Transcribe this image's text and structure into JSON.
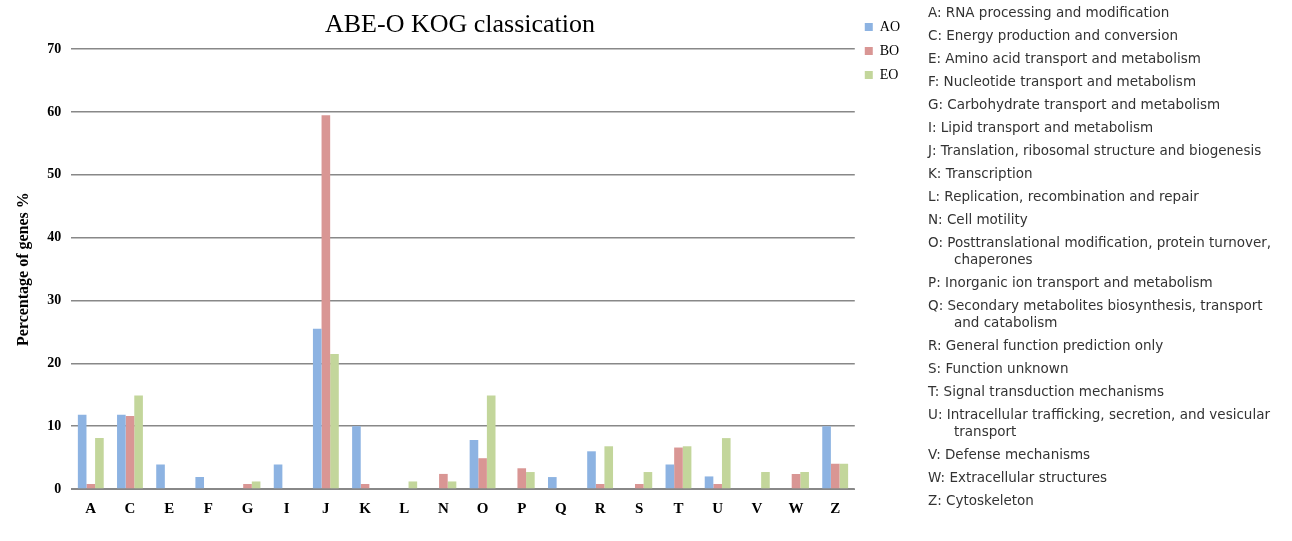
{
  "chart_data": {
    "type": "bar",
    "title": "ABE-O KOG classication",
    "ylabel": "Percentage of genes %",
    "categories": [
      "A",
      "C",
      "E",
      "F",
      "G",
      "I",
      "J",
      "K",
      "L",
      "N",
      "O",
      "P",
      "Q",
      "R",
      "S",
      "T",
      "U",
      "V",
      "W",
      "Z"
    ],
    "series": [
      {
        "name": "AO",
        "color": "#8db3e2",
        "values": [
          11.8,
          11.8,
          3.9,
          1.9,
          0,
          3.9,
          25.5,
          10,
          0,
          0,
          7.8,
          0,
          1.9,
          6,
          0,
          3.9,
          2,
          0,
          0,
          10
        ]
      },
      {
        "name": "BO",
        "color": "#d99694",
        "values": [
          0.8,
          11.6,
          0,
          0,
          0.8,
          0,
          59.5,
          0.8,
          0,
          2.4,
          4.9,
          3.3,
          0,
          0.8,
          0.8,
          6.6,
          0.8,
          0,
          2.4,
          4
        ]
      },
      {
        "name": "EO",
        "color": "#c3d69b",
        "values": [
          8.1,
          14.9,
          0,
          0,
          1.2,
          0,
          21.5,
          0,
          1.2,
          1.2,
          14.9,
          2.7,
          0,
          6.8,
          2.7,
          6.8,
          8.1,
          2.7,
          2.7,
          4
        ]
      }
    ],
    "ylim": [
      0,
      70
    ],
    "yticks": [
      0,
      10,
      20,
      30,
      40,
      50,
      60,
      70
    ],
    "grid": "y",
    "legend": "top right",
    "annotations": [
      "A: RNA processing and modification",
      "C: Energy production and conversion",
      "E: Amino acid transport and metabolism",
      "F: Nucleotide transport and metabolism",
      "G: Carbohydrate transport and metabolism",
      "I: Lipid transport and metabolism",
      "J: Translation, ribosomal structure and biogenesis",
      "K: Transcription",
      "L: Replication, recombination and repair",
      "N: Cell motility",
      "O: Posttranslational modification, protein turnover, chaperones",
      "P: Inorganic ion transport and metabolism",
      "Q: Secondary metabolites biosynthesis, transport and catabolism",
      "R: General function prediction only",
      "S: Function unknown",
      "T: Signal transduction mechanisms",
      "U: Intracellular trafficking, secretion, and vesicular transport",
      "V: Defense mechanisms",
      "W: Extracellular structures",
      "Z: Cytoskeleton"
    ]
  }
}
